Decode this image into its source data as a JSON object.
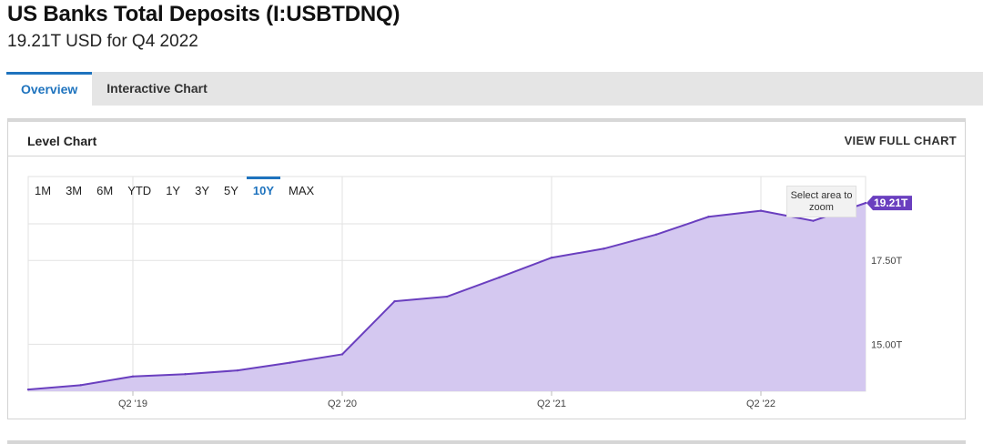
{
  "header": {
    "title": "US Banks Total Deposits (I:USBTDNQ)",
    "subtitle": "19.21T USD for Q4 2022"
  },
  "tabs": [
    {
      "label": "Overview",
      "active": true
    },
    {
      "label": "Interactive Chart",
      "active": false
    }
  ],
  "card": {
    "title": "Level Chart",
    "view_full_label": "VIEW FULL CHART"
  },
  "range_buttons": [
    {
      "label": "1M",
      "active": false
    },
    {
      "label": "3M",
      "active": false
    },
    {
      "label": "6M",
      "active": false
    },
    {
      "label": "YTD",
      "active": false
    },
    {
      "label": "1Y",
      "active": false
    },
    {
      "label": "3Y",
      "active": false
    },
    {
      "label": "5Y",
      "active": false
    },
    {
      "label": "10Y",
      "active": true
    },
    {
      "label": "MAX",
      "active": false
    }
  ],
  "zoom_label": "Select area to zoom",
  "colors": {
    "accent": "#1e73be",
    "series_line": "#6a3fbf",
    "series_fill": "#d4c8f0",
    "last_value_badge": "#6a3fbf"
  },
  "chart_data": {
    "type": "area",
    "title": "Level Chart",
    "x": [
      "Q4 2018",
      "Q1 2019",
      "Q2 2019",
      "Q3 2019",
      "Q4 2019",
      "Q1 2020",
      "Q2 2020",
      "Q3 2020",
      "Q4 2020",
      "Q1 2021",
      "Q2 2021",
      "Q3 2021",
      "Q4 2021",
      "Q1 2022",
      "Q2 2022",
      "Q3 2022",
      "Q4 2022"
    ],
    "series": [
      {
        "values": [
          13.65,
          13.78,
          14.04,
          14.11,
          14.22,
          14.45,
          14.7,
          16.28,
          16.42,
          16.99,
          17.58,
          17.85,
          18.27,
          18.8,
          18.98,
          18.68,
          19.21
        ]
      }
    ],
    "x_tick_labels": [
      "Q2 '19",
      "Q2 '20",
      "Q2 '21",
      "Q2 '22"
    ],
    "x_tick_at": [
      "Q2 2019",
      "Q2 2020",
      "Q2 2021",
      "Q2 2022"
    ],
    "y_tick_labels": [
      "15.00T",
      "17.50T"
    ],
    "y_tick_values": [
      15.0,
      17.5
    ],
    "ylim": [
      13.6,
      20.0
    ],
    "last_value_label": "19.21T",
    "grid": true
  }
}
